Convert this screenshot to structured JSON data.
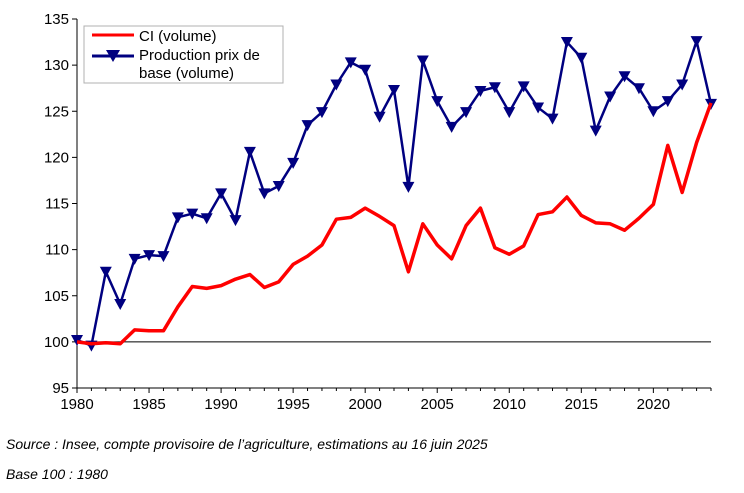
{
  "chart_data": {
    "type": "line",
    "title": "",
    "xlabel": "",
    "ylabel": "",
    "xlim": [
      1980,
      2024
    ],
    "ylim": [
      95,
      135
    ],
    "x_ticks": [
      1980,
      1985,
      1990,
      1995,
      2000,
      2005,
      2010,
      2015,
      2020
    ],
    "y_ticks": [
      95,
      100,
      105,
      110,
      115,
      120,
      125,
      130,
      135
    ],
    "reference_line": 100,
    "grid": false,
    "legend_position": "top-left",
    "x": [
      1980,
      1981,
      1982,
      1983,
      1984,
      1985,
      1986,
      1987,
      1988,
      1989,
      1990,
      1991,
      1992,
      1993,
      1994,
      1995,
      1996,
      1997,
      1998,
      1999,
      2000,
      2001,
      2002,
      2003,
      2004,
      2005,
      2006,
      2007,
      2008,
      2009,
      2010,
      2011,
      2012,
      2013,
      2014,
      2015,
      2016,
      2017,
      2018,
      2019,
      2020,
      2021,
      2022,
      2023,
      2024
    ],
    "series": [
      {
        "name": "CI (volume)",
        "color": "#ff0000",
        "marker": "none",
        "values": [
          100,
          99.8,
          99.9,
          99.8,
          101.3,
          101.2,
          101.2,
          103.8,
          106.0,
          105.8,
          106.1,
          106.8,
          107.3,
          105.9,
          106.5,
          108.4,
          109.3,
          110.5,
          113.3,
          113.5,
          114.5,
          113.6,
          112.6,
          107.6,
          112.8,
          110.5,
          109.0,
          112.6,
          114.5,
          110.2,
          109.5,
          110.4,
          113.8,
          114.1,
          115.7,
          113.7,
          112.9,
          112.8,
          112.1,
          113.4,
          114.9,
          121.3,
          116.2,
          121.6,
          125.9
        ]
      },
      {
        "name": "Production prix de base (volume)",
        "color": "#000080",
        "marker": "triangle-down",
        "values": [
          100.2,
          99.6,
          107.6,
          104.1,
          109.0,
          109.4,
          109.3,
          113.5,
          113.9,
          113.4,
          116.1,
          113.2,
          120.6,
          116.1,
          116.9,
          119.4,
          123.5,
          124.9,
          127.9,
          130.3,
          129.5,
          124.4,
          127.3,
          116.8,
          130.5,
          126.1,
          123.3,
          124.9,
          127.2,
          127.6,
          124.9,
          127.7,
          125.4,
          124.2,
          132.5,
          130.8,
          122.9,
          126.6,
          128.8,
          127.5,
          125.0,
          126.1,
          127.9,
          132.6,
          125.8
        ]
      }
    ]
  },
  "legend": {
    "items": [
      {
        "line1": "CI (volume)",
        "line2": ""
      },
      {
        "line1": "Production prix de",
        "line2": "base (volume)"
      }
    ]
  },
  "notes": {
    "source": "Source : Insee, compte provisoire de l’agriculture, estimations au 16 juin 2025",
    "base": "Base 100 : 1980"
  }
}
